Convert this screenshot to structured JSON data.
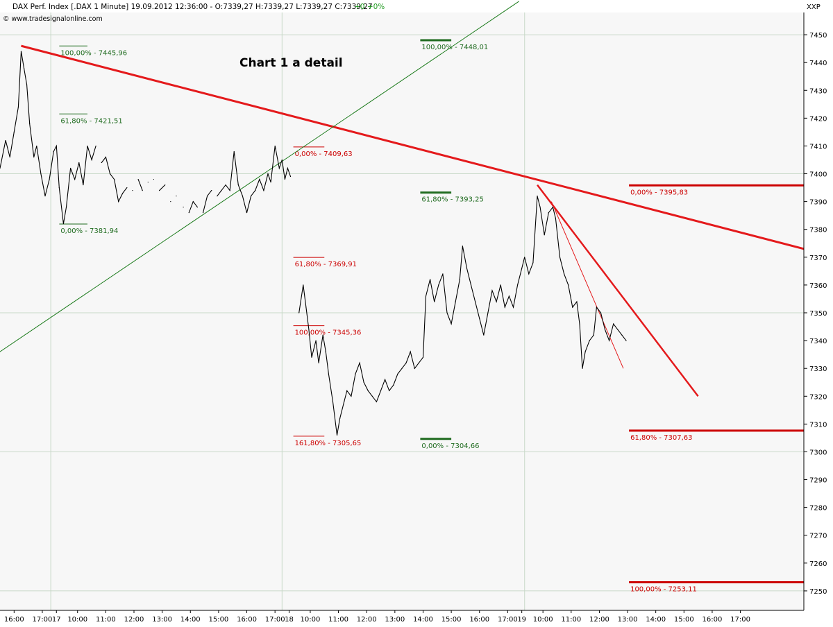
{
  "header": {
    "instrument_line": "DAX Perf. Index [.DAX  1 Minute] 19.09.2012 12:36:00 - O:7339,27 H:7339,27 L:7339,27 C:7339,27",
    "change": "+0 +0%",
    "source": "© www.tradesignalonline.com",
    "corner_tag": "XXP"
  },
  "annotation_title": "Chart 1 a detail",
  "colors": {
    "background": "#f7f7f7",
    "price": "#000000",
    "resistance": "#e41a1c",
    "support": "#1a7a1a",
    "fib_green": "#1f6b1f",
    "fib_red": "#cc0000",
    "grid": "#c8d8c8"
  },
  "chart_data": {
    "type": "line",
    "title": "",
    "xlabel": "",
    "ylabel": "",
    "ylim": [
      7243,
      7458
    ],
    "y_ticks": [
      7250,
      7260,
      7270,
      7280,
      7290,
      7300,
      7310,
      7320,
      7330,
      7340,
      7350,
      7360,
      7370,
      7380,
      7390,
      7400,
      7410,
      7420,
      7430,
      7440,
      7450
    ],
    "y_tick_labels": [
      "7250",
      "7260",
      "7270",
      "7280",
      "7290",
      "7300",
      "7310",
      "7320",
      "7330",
      "7340",
      "7350",
      "7360",
      "7370",
      "7380",
      "7390",
      "7400",
      "7410",
      "7420",
      "7430",
      "7440",
      "7450"
    ],
    "x_session_slots": 28.5,
    "x_ticks": [
      {
        "slot": 0.5,
        "label": "16:00"
      },
      {
        "slot": 1.5,
        "label": "17:00"
      },
      {
        "slot": 2.0,
        "label": "17"
      },
      {
        "slot": 2.75,
        "label": "10:00"
      },
      {
        "slot": 3.75,
        "label": "11:00"
      },
      {
        "slot": 4.75,
        "label": "12:00"
      },
      {
        "slot": 5.75,
        "label": "13:00"
      },
      {
        "slot": 6.75,
        "label": "14:00"
      },
      {
        "slot": 7.75,
        "label": "15:00"
      },
      {
        "slot": 8.75,
        "label": "16:00"
      },
      {
        "slot": 9.75,
        "label": "17:00"
      },
      {
        "slot": 10.25,
        "label": "18"
      },
      {
        "slot": 11.0,
        "label": "10:00"
      },
      {
        "slot": 12.0,
        "label": "11:00"
      },
      {
        "slot": 13.0,
        "label": "12:00"
      },
      {
        "slot": 14.0,
        "label": "13:00"
      },
      {
        "slot": 15.0,
        "label": "14:00"
      },
      {
        "slot": 16.0,
        "label": "15:00"
      },
      {
        "slot": 17.0,
        "label": "16:00"
      },
      {
        "slot": 18.0,
        "label": "17:00"
      },
      {
        "slot": 18.5,
        "label": "19"
      },
      {
        "slot": 19.25,
        "label": "10:00"
      },
      {
        "slot": 20.25,
        "label": "11:00"
      },
      {
        "slot": 21.25,
        "label": "12:00"
      },
      {
        "slot": 22.25,
        "label": "13:00"
      },
      {
        "slot": 23.25,
        "label": "14:00"
      },
      {
        "slot": 24.25,
        "label": "15:00"
      },
      {
        "slot": 25.25,
        "label": "16:00"
      },
      {
        "slot": 26.25,
        "label": "17:00"
      }
    ],
    "day_dividers": [
      1.8,
      10.0,
      18.6
    ],
    "series": [
      {
        "name": "",
        "points": [
          [
            0,
            7402
          ],
          [
            0.2,
            7412
          ],
          [
            0.35,
            7406
          ],
          [
            0.5,
            7415
          ],
          [
            0.65,
            7424
          ],
          [
            0.75,
            7444
          ],
          [
            0.85,
            7438
          ],
          [
            0.95,
            7432
          ],
          [
            1.05,
            7418
          ],
          [
            1.2,
            7406
          ],
          [
            1.3,
            7410
          ],
          [
            1.45,
            7400
          ],
          [
            1.6,
            7392
          ],
          [
            1.75,
            7398
          ],
          [
            1.9,
            7408
          ],
          [
            2.0,
            7410
          ],
          [
            2.1,
            7395
          ],
          [
            2.25,
            7382
          ],
          [
            2.35,
            7388
          ],
          [
            2.5,
            7402
          ],
          [
            2.65,
            7398
          ],
          [
            2.8,
            7404
          ],
          [
            2.95,
            7396
          ],
          [
            3.1,
            7410
          ],
          [
            3.25,
            7405
          ],
          [
            3.4,
            7410
          ],
          [
            3.6,
            7404
          ],
          [
            3.75,
            7406
          ],
          [
            3.9,
            7400
          ],
          [
            4.05,
            7398
          ],
          [
            4.2,
            7390
          ],
          [
            4.35,
            7393
          ],
          [
            4.5,
            7395
          ],
          [
            4.7,
            7394
          ],
          [
            4.9,
            7398
          ],
          [
            5.05,
            7394
          ],
          [
            5.25,
            7397
          ],
          [
            5.45,
            7398
          ],
          [
            5.65,
            7394
          ],
          [
            5.85,
            7396
          ],
          [
            6.05,
            7390
          ],
          [
            6.25,
            7392
          ],
          [
            6.5,
            7388
          ],
          [
            6.7,
            7386
          ],
          [
            6.85,
            7390
          ],
          [
            7.0,
            7388
          ],
          [
            7.2,
            7386
          ],
          [
            7.35,
            7392
          ],
          [
            7.5,
            7394
          ],
          [
            7.7,
            7392
          ],
          [
            7.85,
            7394
          ],
          [
            8.0,
            7396
          ],
          [
            8.15,
            7394
          ],
          [
            8.3,
            7408
          ],
          [
            8.45,
            7396
          ],
          [
            8.6,
            7392
          ],
          [
            8.75,
            7386
          ],
          [
            8.9,
            7392
          ],
          [
            9.05,
            7394
          ],
          [
            9.2,
            7398
          ],
          [
            9.35,
            7394
          ],
          [
            9.5,
            7400
          ],
          [
            9.6,
            7397
          ],
          [
            9.75,
            7410
          ],
          [
            9.9,
            7402
          ],
          [
            10.0,
            7405
          ],
          [
            10.1,
            7398
          ],
          [
            10.2,
            7402
          ],
          [
            10.3,
            7399
          ],
          [
            10.6,
            7350
          ],
          [
            10.75,
            7360
          ],
          [
            10.85,
            7352
          ],
          [
            10.95,
            7344
          ],
          [
            11.05,
            7334
          ],
          [
            11.2,
            7340
          ],
          [
            11.3,
            7332
          ],
          [
            11.45,
            7342
          ],
          [
            11.55,
            7336
          ],
          [
            11.65,
            7328
          ],
          [
            11.8,
            7318
          ],
          [
            11.95,
            7306
          ],
          [
            12.05,
            7312
          ],
          [
            12.2,
            7318
          ],
          [
            12.3,
            7322
          ],
          [
            12.45,
            7320
          ],
          [
            12.6,
            7328
          ],
          [
            12.75,
            7332
          ],
          [
            12.9,
            7325
          ],
          [
            13.05,
            7322
          ],
          [
            13.2,
            7320
          ],
          [
            13.35,
            7318
          ],
          [
            13.5,
            7322
          ],
          [
            13.65,
            7326
          ],
          [
            13.8,
            7322
          ],
          [
            13.95,
            7324
          ],
          [
            14.1,
            7328
          ],
          [
            14.25,
            7330
          ],
          [
            14.4,
            7332
          ],
          [
            14.55,
            7336
          ],
          [
            14.7,
            7330
          ],
          [
            14.85,
            7332
          ],
          [
            15.0,
            7334
          ],
          [
            15.1,
            7356
          ],
          [
            15.25,
            7362
          ],
          [
            15.4,
            7354
          ],
          [
            15.55,
            7360
          ],
          [
            15.7,
            7364
          ],
          [
            15.85,
            7350
          ],
          [
            16.0,
            7346
          ],
          [
            16.15,
            7354
          ],
          [
            16.3,
            7362
          ],
          [
            16.4,
            7374
          ],
          [
            16.55,
            7366
          ],
          [
            16.7,
            7360
          ],
          [
            16.85,
            7354
          ],
          [
            17.0,
            7348
          ],
          [
            17.15,
            7342
          ],
          [
            17.3,
            7350
          ],
          [
            17.45,
            7358
          ],
          [
            17.6,
            7354
          ],
          [
            17.75,
            7360
          ],
          [
            17.9,
            7352
          ],
          [
            18.05,
            7356
          ],
          [
            18.2,
            7352
          ],
          [
            18.35,
            7360
          ],
          [
            18.5,
            7366
          ],
          [
            18.6,
            7370
          ],
          [
            18.75,
            7364
          ],
          [
            18.9,
            7368
          ],
          [
            19.05,
            7392
          ],
          [
            19.15,
            7388
          ],
          [
            19.3,
            7378
          ],
          [
            19.45,
            7386
          ],
          [
            19.6,
            7388
          ],
          [
            19.7,
            7384
          ],
          [
            19.85,
            7370
          ],
          [
            20.0,
            7364
          ],
          [
            20.15,
            7360
          ],
          [
            20.3,
            7352
          ],
          [
            20.45,
            7354
          ],
          [
            20.55,
            7346
          ],
          [
            20.65,
            7330
          ],
          [
            20.75,
            7336
          ],
          [
            20.9,
            7340
          ],
          [
            21.05,
            7342
          ],
          [
            21.15,
            7352
          ],
          [
            21.3,
            7350
          ],
          [
            21.45,
            7344
          ],
          [
            21.6,
            7340
          ],
          [
            21.75,
            7346
          ],
          [
            21.9,
            7344
          ],
          [
            22.05,
            7342
          ],
          [
            22.2,
            7340
          ]
        ]
      }
    ],
    "trendlines": [
      {
        "name": "",
        "color": "#e41a1c",
        "width": 3,
        "from": [
          0.75,
          7446
        ],
        "to": [
          28.5,
          7373
        ]
      },
      {
        "name": "",
        "color": "#1a7a1a",
        "width": 1,
        "from": [
          0,
          7336
        ],
        "to": [
          18.4,
          7462
        ]
      },
      {
        "name": "",
        "color": "#e41a1c",
        "width": 2.5,
        "from": [
          19.05,
          7396
        ],
        "to": [
          24.75,
          7320
        ]
      },
      {
        "name": "",
        "color": "#e41a1c",
        "width": 1,
        "from": [
          19.55,
          7390
        ],
        "to": [
          22.1,
          7330
        ]
      }
    ],
    "fib_levels": [
      {
        "label": "100,00% - 7445,96",
        "value": 7445.96,
        "x1": 2.1,
        "x2": 3.1,
        "color": "#1f6b1f",
        "bar_width": 1
      },
      {
        "label": "61,80% - 7421,51",
        "value": 7421.51,
        "x1": 2.1,
        "x2": 3.1,
        "color": "#1f6b1f",
        "bar_width": 1
      },
      {
        "label": "0,00% - 7381,94",
        "value": 7381.94,
        "x1": 2.1,
        "x2": 3.1,
        "color": "#1f6b1f",
        "bar_width": 1
      },
      {
        "label": "100,00% - 7448,01",
        "value": 7448.01,
        "x1": 14.9,
        "x2": 16.0,
        "color": "#1f6b1f",
        "bar_width": 3
      },
      {
        "label": "61,80% - 7393,25",
        "value": 7393.25,
        "x1": 14.9,
        "x2": 16.0,
        "color": "#1f6b1f",
        "bar_width": 3
      },
      {
        "label": "0,00% - 7304,66",
        "value": 7304.66,
        "x1": 14.9,
        "x2": 16.0,
        "color": "#1f6b1f",
        "bar_width": 3
      },
      {
        "label": "0,00% - 7409,63",
        "value": 7409.63,
        "x1": 10.4,
        "x2": 11.5,
        "color": "#cc0000",
        "bar_width": 1
      },
      {
        "label": "61,80% - 7369,91",
        "value": 7369.91,
        "x1": 10.4,
        "x2": 11.5,
        "color": "#cc0000",
        "bar_width": 1
      },
      {
        "label": "100,00% - 7345,36",
        "value": 7345.36,
        "x1": 10.4,
        "x2": 11.5,
        "color": "#cc0000",
        "bar_width": 1
      },
      {
        "label": "161,80% - 7305,65",
        "value": 7305.65,
        "x1": 10.4,
        "x2": 11.5,
        "color": "#cc0000",
        "bar_width": 1
      },
      {
        "label": "0,00% - 7395,83",
        "value": 7395.83,
        "x1": 22.3,
        "x2": 28.5,
        "color": "#cc0000",
        "bar_width": 3
      },
      {
        "label": "61,80% - 7307,63",
        "value": 7307.63,
        "x1": 22.3,
        "x2": 28.5,
        "color": "#cc0000",
        "bar_width": 3
      },
      {
        "label": "100,00% - 7253,11",
        "value": 7253.11,
        "x1": 22.3,
        "x2": 28.5,
        "color": "#cc0000",
        "bar_width": 3
      }
    ]
  }
}
